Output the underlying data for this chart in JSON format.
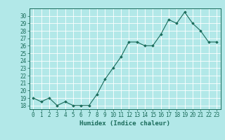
{
  "x": [
    0,
    1,
    2,
    3,
    4,
    5,
    6,
    7,
    8,
    9,
    10,
    11,
    12,
    13,
    14,
    15,
    16,
    17,
    18,
    19,
    20,
    21,
    22,
    23
  ],
  "y": [
    19,
    18.5,
    19,
    18,
    18.5,
    18,
    18,
    18,
    19.5,
    21.5,
    23,
    24.5,
    26.5,
    26.5,
    26,
    26,
    27.5,
    29.5,
    29,
    30.5,
    29,
    28,
    26.5,
    26.5
  ],
  "xlabel": "Humidex (Indice chaleur)",
  "ylabel": "",
  "ylim": [
    17.5,
    31
  ],
  "xlim": [
    -0.5,
    23.5
  ],
  "yticks": [
    18,
    19,
    20,
    21,
    22,
    23,
    24,
    25,
    26,
    27,
    28,
    29,
    30
  ],
  "xticks": [
    0,
    1,
    2,
    3,
    4,
    5,
    6,
    7,
    8,
    9,
    10,
    11,
    12,
    13,
    14,
    15,
    16,
    17,
    18,
    19,
    20,
    21,
    22,
    23
  ],
  "line_color": "#1a6b5a",
  "marker": "D",
  "marker_size": 1.8,
  "bg_color": "#b2e8e8",
  "grid_color": "#ffffff",
  "label_fontsize": 6.5,
  "tick_fontsize": 5.5
}
